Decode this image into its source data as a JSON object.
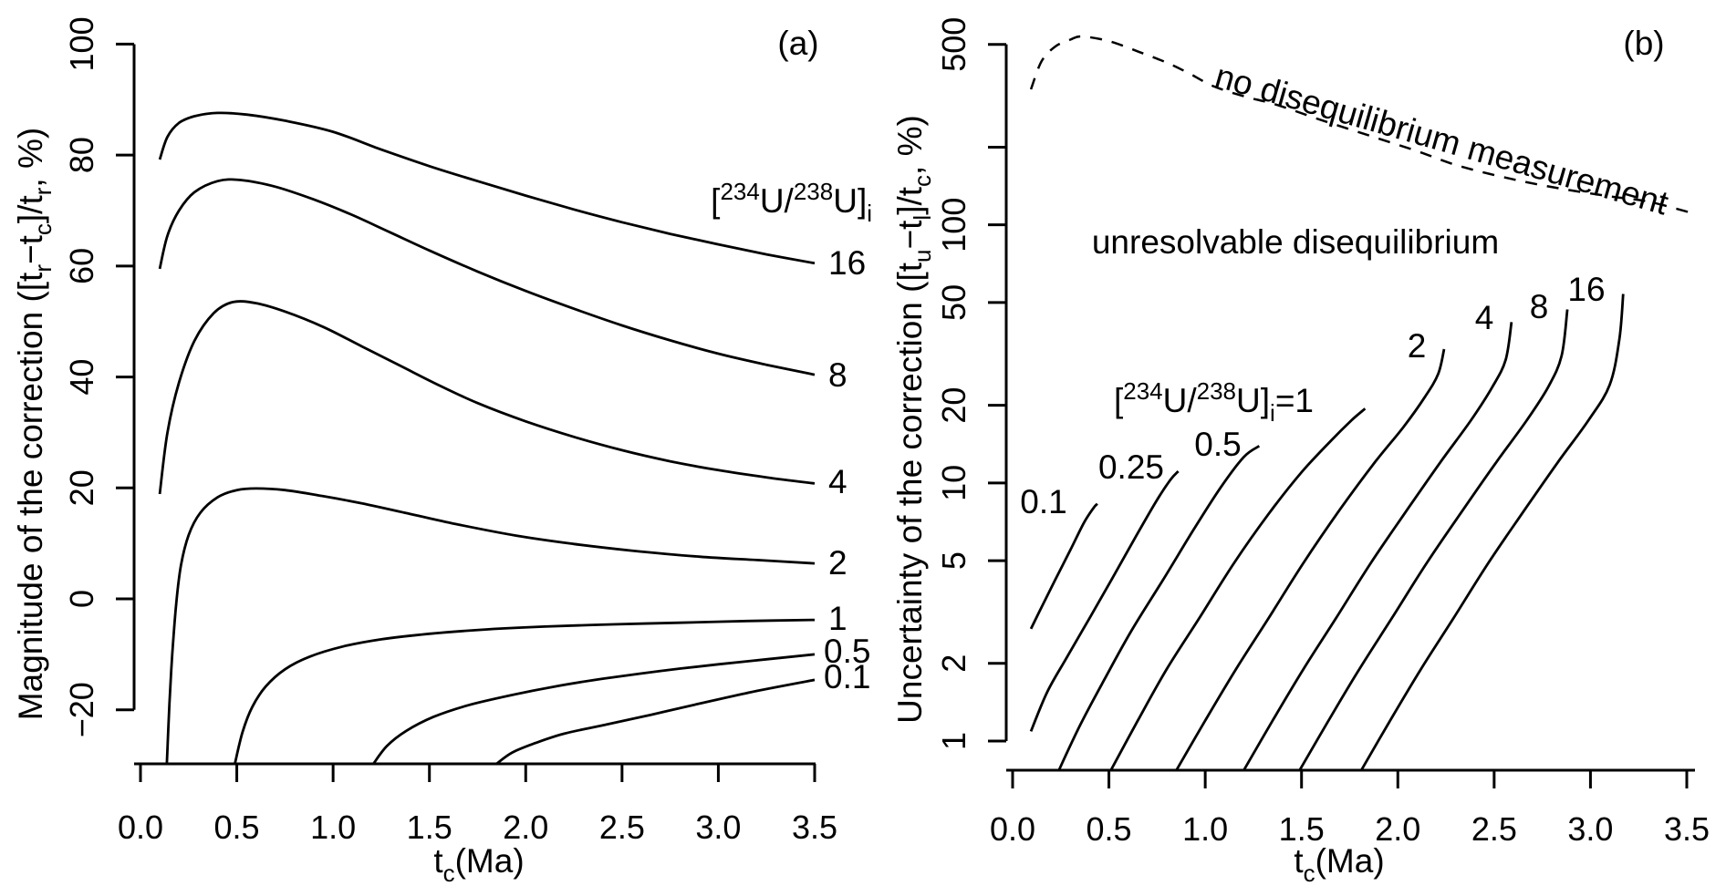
{
  "figure": {
    "background": "#ffffff",
    "ink": "#000000"
  },
  "panel_a": {
    "tag": "(a)",
    "y_title_parts": {
      "p1": "Magnitude of the correction ([t",
      "s1": "r",
      "p2": "−t",
      "s2": "c",
      "p3": "]/t",
      "s3": "r",
      "p4": ", %)"
    },
    "x_title_parts": {
      "p1": "t",
      "s1": "c",
      "p2": "(Ma)"
    },
    "legend_title_parts": {
      "b1": "[",
      "sup1": "234",
      "b2": "U/",
      "sup2": "238",
      "b3": "U]",
      "sub1": "i"
    },
    "curve_labels": [
      "16",
      "8",
      "4",
      "2",
      "1",
      "0.5",
      "0.1"
    ]
  },
  "panel_b": {
    "tag": "(b)",
    "y_title_parts": {
      "p1": "Uncertainty of the correction ([t",
      "s1": "u",
      "p2": "−t",
      "s2": "l",
      "p3": "]/t",
      "s3": "c",
      "p4": ", %)"
    },
    "x_title_parts": {
      "p1": "t",
      "s1": "c",
      "p2": "(Ma)"
    },
    "legend_label_parts": {
      "b1": "[",
      "sup1": "234",
      "b2": "U/",
      "sup2": "238",
      "b3": "U]",
      "sub1": "i",
      "b4": "=1"
    },
    "annotation_dashed": "no disequilibrium measurement",
    "annotation_region": "unresolvable disequilibrium",
    "curve_labels": [
      "0.1",
      "0.25",
      "0.5",
      "2",
      "4",
      "8",
      "16"
    ]
  },
  "chart_data": [
    {
      "type": "line",
      "panel": "a",
      "xlabel": "t_c (Ma)",
      "ylabel": "Magnitude of the correction ([t_r − t_c]/t_r, %)",
      "legend_title": "[234U/238U]_i",
      "xlim": [
        0,
        3.5
      ],
      "ylim": [
        -29.7,
        110
      ],
      "yscale": "linear",
      "grid": false,
      "xticks": [
        0,
        0.5,
        1.0,
        1.5,
        2.0,
        2.5,
        3.0,
        3.5
      ],
      "xtick_labels": [
        "0.0",
        "0.5",
        "1.0",
        "1.5",
        "2.0",
        "2.5",
        "3.0",
        "3.5"
      ],
      "yticks": [
        100,
        80,
        60,
        40,
        20,
        0,
        -20
      ],
      "ytick_labels": [
        "100",
        "80",
        "60",
        "40",
        "20",
        "0",
        "−20"
      ],
      "series": [
        {
          "name": "16",
          "style": "solid",
          "x": [
            0.1,
            0.14,
            0.2,
            0.28,
            0.4,
            0.55,
            0.75,
            1.0,
            1.25,
            1.5,
            1.75,
            2.0,
            2.25,
            2.5,
            2.75,
            3.0,
            3.25,
            3.5
          ],
          "y": [
            79.2,
            83.3,
            85.8,
            87.0,
            87.6,
            87.3,
            86.2,
            84.2,
            81.0,
            78.0,
            75.3,
            72.7,
            70.2,
            67.9,
            65.8,
            63.9,
            62.1,
            60.5
          ]
        },
        {
          "name": "8",
          "style": "solid",
          "x": [
            0.1,
            0.14,
            0.2,
            0.28,
            0.4,
            0.52,
            0.7,
            0.9,
            1.1,
            1.3,
            1.5,
            1.75,
            2.0,
            2.25,
            2.5,
            2.75,
            3.0,
            3.25,
            3.5
          ],
          "y": [
            59.5,
            65.5,
            70.0,
            73.3,
            75.3,
            75.5,
            74.3,
            72.0,
            69.2,
            66.0,
            62.8,
            59.0,
            55.5,
            52.3,
            49.3,
            46.6,
            44.2,
            42.2,
            40.4
          ]
        },
        {
          "name": "4",
          "style": "solid",
          "x": [
            0.1,
            0.14,
            0.2,
            0.28,
            0.38,
            0.48,
            0.6,
            0.75,
            0.95,
            1.15,
            1.35,
            1.55,
            1.75,
            2.0,
            2.25,
            2.5,
            2.75,
            3.0,
            3.25,
            3.5
          ],
          "y": [
            18.9,
            30.0,
            39.0,
            46.5,
            51.5,
            53.5,
            53.3,
            51.8,
            49.0,
            45.5,
            42.0,
            38.5,
            35.3,
            32.0,
            29.2,
            26.8,
            24.8,
            23.2,
            21.9,
            20.8
          ]
        },
        {
          "name": "2",
          "style": "solid",
          "x": [
            0.137,
            0.15,
            0.165,
            0.185,
            0.21,
            0.25,
            0.31,
            0.4,
            0.5,
            0.6,
            0.75,
            0.95,
            1.15,
            1.4,
            1.65,
            1.95,
            2.25,
            2.55,
            2.9,
            3.2,
            3.5
          ],
          "y": [
            -29.7,
            -19.0,
            -10.0,
            -1.0,
            6.0,
            11.5,
            15.5,
            18.3,
            19.6,
            19.9,
            19.6,
            18.5,
            17.2,
            15.3,
            13.4,
            11.4,
            9.9,
            8.7,
            7.6,
            7.0,
            6.4
          ]
        },
        {
          "name": "1",
          "style": "solid",
          "x": [
            0.49,
            0.53,
            0.58,
            0.65,
            0.75,
            0.88,
            1.05,
            1.25,
            1.5,
            1.8,
            2.1,
            2.45,
            2.8,
            3.15,
            3.5
          ],
          "y": [
            -29.7,
            -24.0,
            -19.5,
            -15.8,
            -12.7,
            -10.4,
            -8.6,
            -7.3,
            -6.3,
            -5.5,
            -5.0,
            -4.6,
            -4.3,
            -4.0,
            -3.8
          ]
        },
        {
          "name": "0.5",
          "style": "solid",
          "x": [
            1.21,
            1.28,
            1.38,
            1.52,
            1.7,
            1.92,
            2.15,
            2.4,
            2.7,
            3.0,
            3.25,
            3.5
          ],
          "y": [
            -29.7,
            -26.5,
            -23.8,
            -21.3,
            -19.2,
            -17.4,
            -15.8,
            -14.4,
            -13.0,
            -11.8,
            -10.9,
            -10.0
          ]
        },
        {
          "name": "0.1",
          "style": "solid",
          "x": [
            1.85,
            1.93,
            2.05,
            2.2,
            2.4,
            2.65,
            2.9,
            3.2,
            3.5
          ],
          "y": [
            -29.7,
            -27.7,
            -26.0,
            -24.3,
            -22.8,
            -20.9,
            -18.9,
            -16.6,
            -14.6
          ]
        }
      ]
    },
    {
      "type": "line",
      "panel": "b",
      "xlabel": "t_c (Ma)",
      "ylabel": "Uncertainty of the correction ([t_u − t_l]/t_c, %)",
      "xlim": [
        0,
        3.5
      ],
      "ylim": [
        0.77,
        560
      ],
      "yscale": "log",
      "grid": false,
      "xticks": [
        0,
        0.5,
        1.0,
        1.5,
        2.0,
        2.5,
        3.0,
        3.5
      ],
      "xtick_labels": [
        "0.0",
        "0.5",
        "1.0",
        "1.5",
        "2.0",
        "2.5",
        "3.0",
        "3.5"
      ],
      "yticks": [
        500,
        200,
        100,
        50,
        20,
        10,
        5,
        2,
        1
      ],
      "ytick_labels": [
        "500",
        "",
        "100",
        "50",
        "20",
        "10",
        "5",
        "2",
        "1"
      ],
      "series": [
        {
          "name": "no disequilibrium measurement",
          "style": "dashed",
          "x": [
            0.095,
            0.15,
            0.22,
            0.3,
            0.36,
            0.5,
            0.65,
            0.8,
            0.92,
            1.04,
            1.2,
            1.37,
            1.6,
            1.85,
            2.1,
            2.32,
            2.6,
            2.85,
            3.1,
            3.3,
            3.51
          ],
          "y": [
            335,
            430,
            490,
            522,
            537,
            515,
            470,
            425,
            385,
            345,
            315,
            292,
            255,
            222,
            193,
            169,
            150,
            138,
            129,
            123,
            112
          ]
        },
        {
          "name": "0.1",
          "style": "solid",
          "x": [
            0.095,
            0.15,
            0.22,
            0.3,
            0.37,
            0.42,
            0.44
          ],
          "y": [
            2.72,
            3.3,
            4.2,
            5.5,
            7.0,
            8.0,
            8.3
          ]
        },
        {
          "name": "0.25",
          "style": "solid",
          "x": [
            0.095,
            0.18,
            0.28,
            0.4,
            0.52,
            0.64,
            0.75,
            0.82,
            0.86
          ],
          "y": [
            1.09,
            1.55,
            2.1,
            3.0,
            4.3,
            6.2,
            8.6,
            10.3,
            11.1
          ]
        },
        {
          "name": "0.5",
          "style": "solid",
          "x": [
            0.24,
            0.35,
            0.48,
            0.62,
            0.78,
            0.94,
            1.08,
            1.2,
            1.28
          ],
          "y": [
            0.77,
            1.15,
            1.75,
            2.7,
            4.2,
            6.6,
            9.6,
            12.6,
            13.9
          ]
        },
        {
          "name": "1",
          "style": "solid",
          "x": [
            0.51,
            0.65,
            0.8,
            0.97,
            1.15,
            1.33,
            1.5,
            1.65,
            1.76,
            1.83
          ],
          "y": [
            0.77,
            1.2,
            1.9,
            3.0,
            4.9,
            7.6,
            11.0,
            14.5,
            17.5,
            19.4
          ]
        },
        {
          "name": "2",
          "style": "solid",
          "x": [
            0.85,
            1.0,
            1.16,
            1.33,
            1.51,
            1.7,
            1.88,
            2.03,
            2.14,
            2.21,
            2.24
          ],
          "y": [
            0.77,
            1.2,
            1.9,
            3.0,
            4.9,
            7.9,
            12.0,
            16.5,
            21.5,
            26.5,
            33
          ]
        },
        {
          "name": "4",
          "style": "solid",
          "x": [
            1.2,
            1.35,
            1.51,
            1.68,
            1.86,
            2.05,
            2.22,
            2.38,
            2.49,
            2.56,
            2.59
          ],
          "y": [
            0.77,
            1.2,
            1.9,
            3.0,
            4.9,
            7.9,
            12.0,
            17.5,
            23.5,
            30,
            42
          ]
        },
        {
          "name": "8",
          "style": "solid",
          "x": [
            1.49,
            1.64,
            1.8,
            1.97,
            2.15,
            2.34,
            2.51,
            2.67,
            2.78,
            2.85,
            2.88
          ],
          "y": [
            0.77,
            1.2,
            1.9,
            3.0,
            4.9,
            7.9,
            12.0,
            17.5,
            23.5,
            31,
            47
          ]
        },
        {
          "name": "16",
          "style": "solid",
          "x": [
            1.81,
            1.96,
            2.12,
            2.29,
            2.47,
            2.66,
            2.83,
            2.99,
            3.1,
            3.15,
            3.17
          ],
          "y": [
            0.77,
            1.2,
            1.9,
            3.0,
            4.9,
            7.9,
            12.0,
            17.5,
            24,
            36,
            54
          ]
        }
      ]
    }
  ]
}
